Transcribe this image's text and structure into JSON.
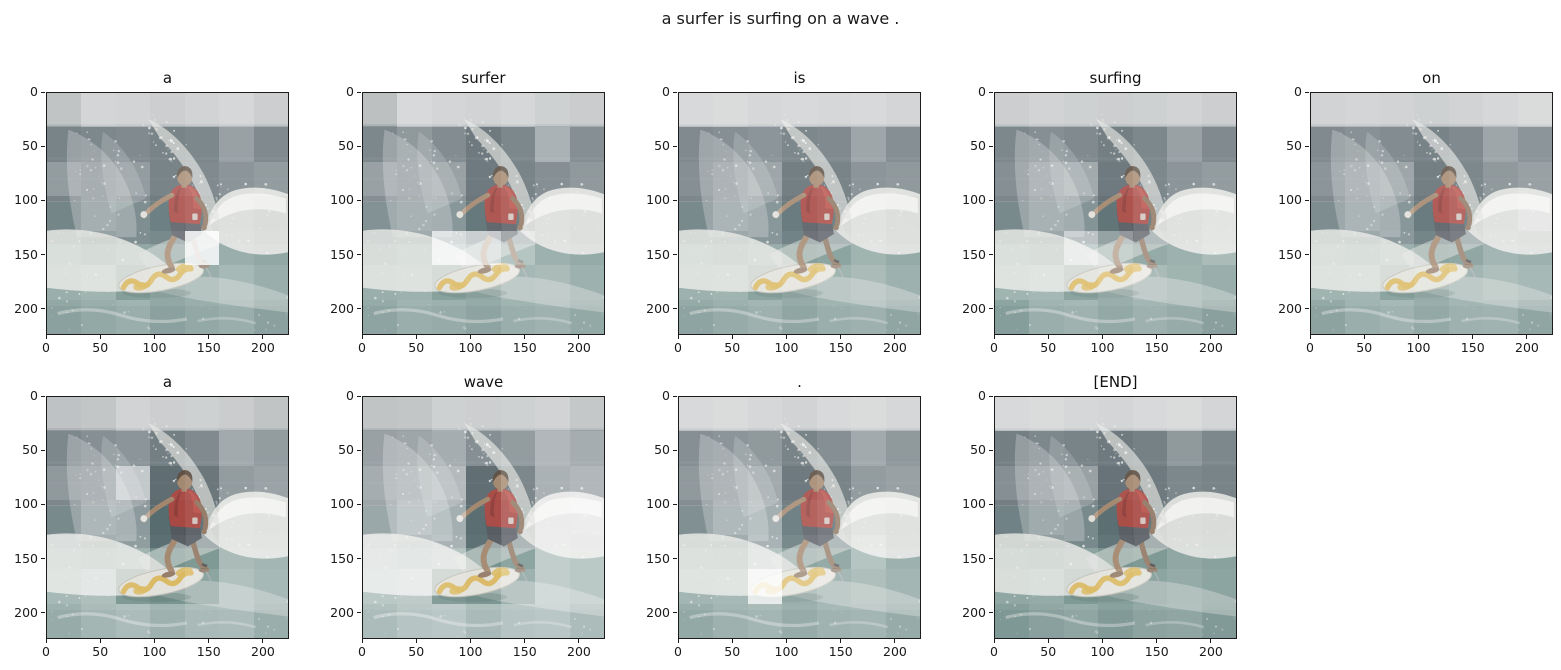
{
  "chart_data": {
    "type": "heatmap",
    "suptitle": "a surfer is surfing on a wave .",
    "caption_tokens": [
      "a",
      "surfer",
      "is",
      "surfing",
      "on",
      "a",
      "wave",
      ".",
      "[END]"
    ],
    "image_axis_range": [
      0,
      224
    ],
    "x_ticks": [
      0,
      50,
      100,
      150,
      200
    ],
    "y_ticks": [
      0,
      50,
      100,
      150,
      200
    ],
    "attention_grid_size": 7,
    "layout": {
      "rows": 2,
      "cols": 5,
      "positions": [
        [
          0,
          0
        ],
        [
          0,
          1
        ],
        [
          0,
          2
        ],
        [
          0,
          3
        ],
        [
          0,
          4
        ],
        [
          1,
          0
        ],
        [
          1,
          1
        ],
        [
          1,
          2
        ],
        [
          1,
          3
        ]
      ]
    },
    "subplots": [
      {
        "title": "a",
        "attention": [
          [
            0.3,
            0.5,
            0.48,
            0.42,
            0.48,
            0.52,
            0.42
          ],
          [
            0.28,
            0.3,
            0.32,
            0.28,
            0.3,
            0.45,
            0.32
          ],
          [
            0.42,
            0.38,
            0.42,
            0.28,
            0.32,
            0.38,
            0.42
          ],
          [
            0.28,
            0.38,
            0.33,
            0.24,
            0.28,
            0.35,
            0.28
          ],
          [
            0.33,
            0.28,
            0.33,
            0.3,
            0.88,
            0.38,
            0.33
          ],
          [
            0.38,
            0.42,
            0.26,
            0.33,
            0.38,
            0.46,
            0.38
          ],
          [
            0.33,
            0.38,
            0.42,
            0.33,
            0.38,
            0.42,
            0.33
          ]
        ]
      },
      {
        "title": "surfer",
        "attention": [
          [
            0.25,
            0.55,
            0.5,
            0.48,
            0.52,
            0.45,
            0.4
          ],
          [
            0.3,
            0.4,
            0.33,
            0.22,
            0.3,
            0.55,
            0.35
          ],
          [
            0.45,
            0.42,
            0.45,
            0.22,
            0.28,
            0.35,
            0.4
          ],
          [
            0.35,
            0.4,
            0.38,
            0.2,
            0.25,
            0.38,
            0.35
          ],
          [
            0.3,
            0.35,
            0.8,
            0.72,
            0.55,
            0.4,
            0.35
          ],
          [
            0.38,
            0.4,
            0.28,
            0.33,
            0.45,
            0.48,
            0.4
          ],
          [
            0.35,
            0.42,
            0.4,
            0.35,
            0.42,
            0.45,
            0.38
          ]
        ]
      },
      {
        "title": "is",
        "attention": [
          [
            0.55,
            0.58,
            0.52,
            0.55,
            0.52,
            0.55,
            0.5
          ],
          [
            0.32,
            0.35,
            0.38,
            0.3,
            0.32,
            0.48,
            0.35
          ],
          [
            0.35,
            0.42,
            0.48,
            0.25,
            0.28,
            0.38,
            0.4
          ],
          [
            0.3,
            0.42,
            0.38,
            0.22,
            0.26,
            0.4,
            0.32
          ],
          [
            0.35,
            0.32,
            0.38,
            0.26,
            0.3,
            0.42,
            0.35
          ],
          [
            0.4,
            0.42,
            0.3,
            0.35,
            0.42,
            0.48,
            0.4
          ],
          [
            0.35,
            0.4,
            0.44,
            0.36,
            0.42,
            0.44,
            0.36
          ]
        ]
      },
      {
        "title": "surfing",
        "attention": [
          [
            0.42,
            0.48,
            0.45,
            0.42,
            0.45,
            0.48,
            0.42
          ],
          [
            0.3,
            0.35,
            0.32,
            0.25,
            0.3,
            0.45,
            0.32
          ],
          [
            0.35,
            0.45,
            0.5,
            0.22,
            0.3,
            0.38,
            0.42
          ],
          [
            0.3,
            0.4,
            0.36,
            0.18,
            0.26,
            0.38,
            0.45
          ],
          [
            0.35,
            0.32,
            0.65,
            0.45,
            0.35,
            0.4,
            0.48
          ],
          [
            0.42,
            0.45,
            0.3,
            0.38,
            0.48,
            0.42,
            0.38
          ],
          [
            0.3,
            0.42,
            0.45,
            0.38,
            0.44,
            0.4,
            0.32
          ]
        ]
      },
      {
        "title": "on",
        "attention": [
          [
            0.48,
            0.5,
            0.48,
            0.45,
            0.48,
            0.52,
            0.58
          ],
          [
            0.32,
            0.36,
            0.33,
            0.27,
            0.32,
            0.48,
            0.38
          ],
          [
            0.38,
            0.45,
            0.48,
            0.25,
            0.3,
            0.4,
            0.45
          ],
          [
            0.32,
            0.42,
            0.38,
            0.22,
            0.28,
            0.4,
            0.52
          ],
          [
            0.36,
            0.33,
            0.4,
            0.28,
            0.32,
            0.44,
            0.4
          ],
          [
            0.42,
            0.44,
            0.3,
            0.36,
            0.44,
            0.5,
            0.46
          ],
          [
            0.34,
            0.42,
            0.46,
            0.38,
            0.44,
            0.46,
            0.36
          ]
        ]
      },
      {
        "title": "a",
        "attention": [
          [
            0.28,
            0.32,
            0.48,
            0.42,
            0.45,
            0.4,
            0.3
          ],
          [
            0.3,
            0.35,
            0.38,
            0.25,
            0.32,
            0.5,
            0.42
          ],
          [
            0.4,
            0.42,
            0.68,
            0.14,
            0.2,
            0.42,
            0.46
          ],
          [
            0.3,
            0.44,
            0.4,
            0.12,
            0.18,
            0.44,
            0.4
          ],
          [
            0.42,
            0.38,
            0.42,
            0.15,
            0.22,
            0.48,
            0.44
          ],
          [
            0.46,
            0.5,
            0.22,
            0.18,
            0.3,
            0.52,
            0.46
          ],
          [
            0.4,
            0.48,
            0.52,
            0.44,
            0.5,
            0.52,
            0.42
          ]
        ]
      },
      {
        "title": "wave",
        "attention": [
          [
            0.3,
            0.32,
            0.45,
            0.42,
            0.45,
            0.48,
            0.35
          ],
          [
            0.45,
            0.48,
            0.52,
            0.35,
            0.42,
            0.58,
            0.52
          ],
          [
            0.52,
            0.55,
            0.6,
            0.15,
            0.3,
            0.55,
            0.58
          ],
          [
            0.48,
            0.58,
            0.52,
            0.14,
            0.28,
            0.6,
            0.62
          ],
          [
            0.55,
            0.5,
            0.55,
            0.16,
            0.3,
            0.62,
            0.58
          ],
          [
            0.58,
            0.6,
            0.25,
            0.2,
            0.4,
            0.62,
            0.58
          ],
          [
            0.52,
            0.58,
            0.6,
            0.5,
            0.58,
            0.6,
            0.52
          ]
        ]
      },
      {
        "title": ".",
        "attention": [
          [
            0.55,
            0.58,
            0.52,
            0.48,
            0.55,
            0.58,
            0.52
          ],
          [
            0.35,
            0.38,
            0.4,
            0.28,
            0.35,
            0.5,
            0.4
          ],
          [
            0.4,
            0.44,
            0.5,
            0.22,
            0.28,
            0.42,
            0.45
          ],
          [
            0.34,
            0.45,
            0.52,
            0.25,
            0.3,
            0.44,
            0.38
          ],
          [
            0.38,
            0.36,
            0.55,
            0.3,
            0.35,
            0.55,
            0.4
          ],
          [
            0.44,
            0.46,
            0.85,
            0.38,
            0.45,
            0.5,
            0.44
          ],
          [
            0.38,
            0.44,
            0.48,
            0.4,
            0.46,
            0.48,
            0.4
          ]
        ]
      },
      {
        "title": "[END]",
        "attention": [
          [
            0.55,
            0.58,
            0.52,
            0.5,
            0.55,
            0.58,
            0.5
          ],
          [
            0.25,
            0.3,
            0.28,
            0.22,
            0.26,
            0.4,
            0.3
          ],
          [
            0.35,
            0.42,
            0.45,
            0.18,
            0.22,
            0.3,
            0.28
          ],
          [
            0.25,
            0.35,
            0.3,
            0.15,
            0.2,
            0.3,
            0.25
          ],
          [
            0.28,
            0.25,
            0.3,
            0.18,
            0.22,
            0.32,
            0.28
          ],
          [
            0.32,
            0.35,
            0.22,
            0.25,
            0.3,
            0.35,
            0.3
          ],
          [
            0.26,
            0.32,
            0.36,
            0.28,
            0.34,
            0.36,
            0.28
          ]
        ]
      }
    ]
  },
  "scene": {
    "description": "surfer in red shirt crouching on a white surfboard with yellow pads, riding a breaking wave with white spray",
    "colors": {
      "sky": "#a7abad",
      "ocean_upper": "#46555b",
      "ocean_mid": "#40585c",
      "water": "#5c7e78",
      "water_deep": "#527470",
      "foam": "#dfe0dc",
      "shirt": "#9c2f29",
      "shirt_highlight": "#b23a31",
      "skin": "#96765a",
      "skin_shadow": "#7f624a",
      "board": "#dcdbd3",
      "board_accent": "#d2a93c",
      "shorts": "#3d434b",
      "hair": "#453527"
    }
  }
}
